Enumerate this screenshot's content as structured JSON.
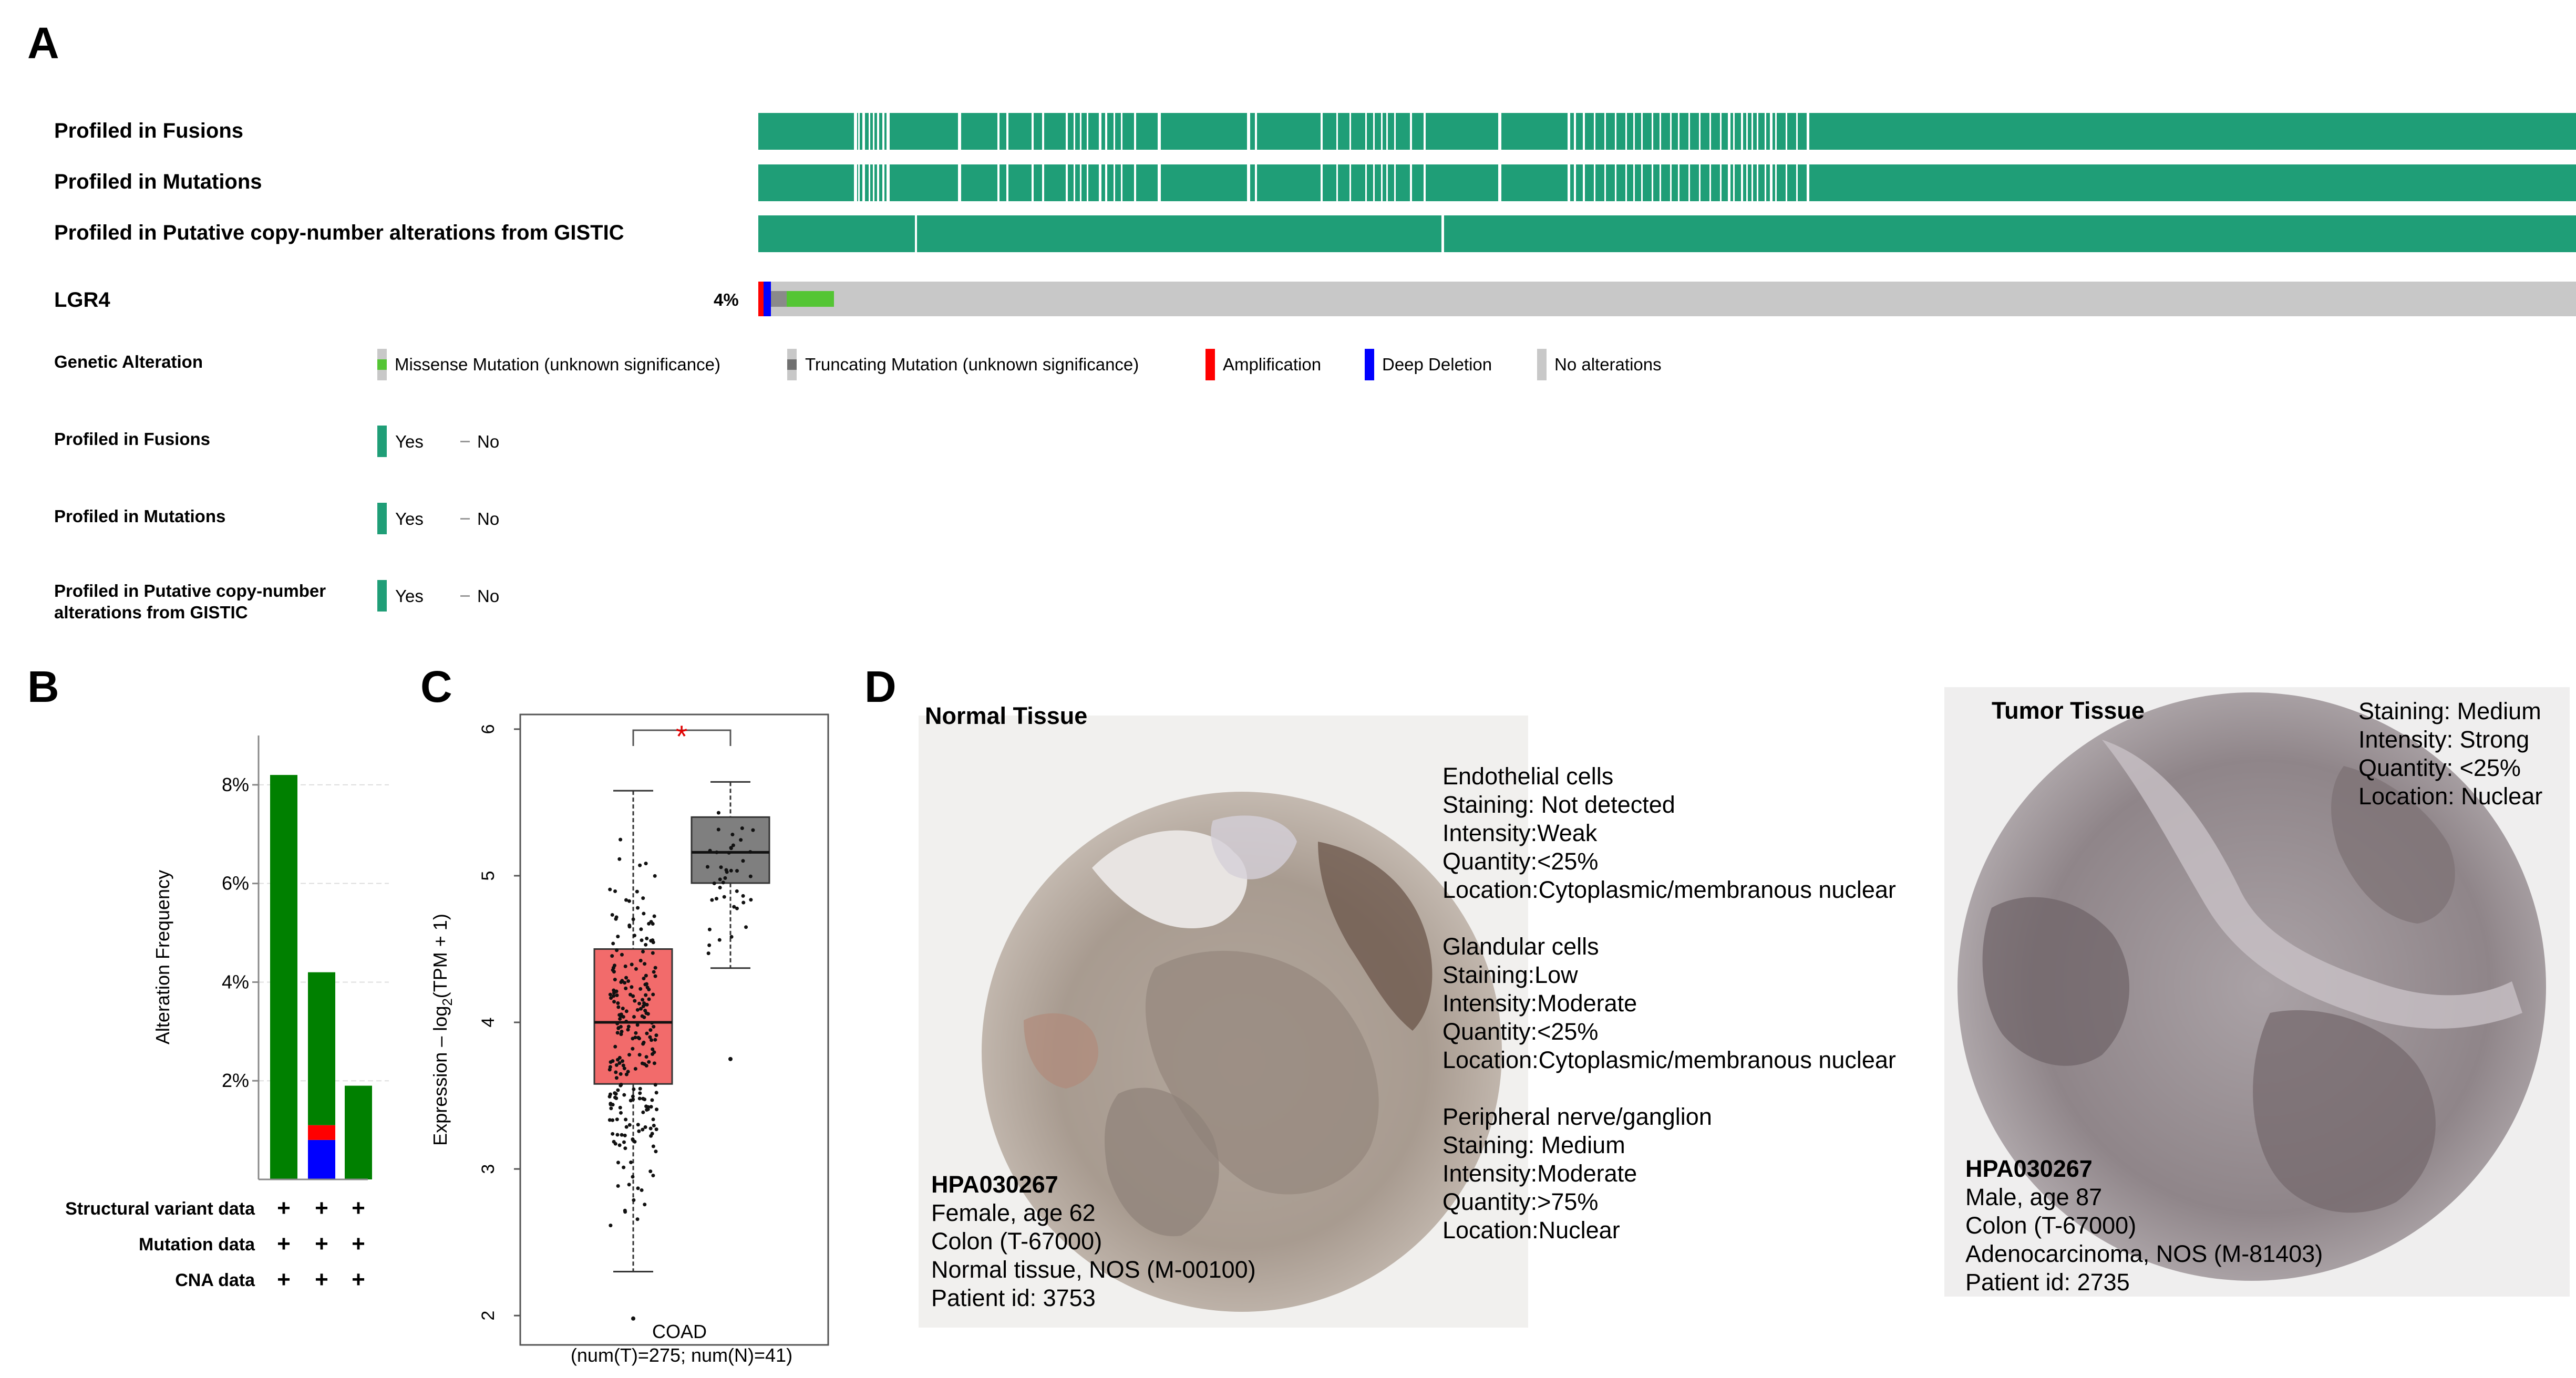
{
  "panels": {
    "a": "A",
    "b": "B",
    "c": "C",
    "d": "D"
  },
  "oncoprint": {
    "tracks": [
      {
        "label": "Profiled in Fusions"
      },
      {
        "label": "Profiled in Mutations"
      },
      {
        "label": "Profiled in Putative copy-number alterations from GISTIC"
      }
    ],
    "gene": {
      "name": "LGR4",
      "percent": "4%"
    },
    "colors": {
      "profiled": "#1f9e77",
      "no_alteration": "#c8c8c8",
      "missense": "#54c534",
      "truncating": "#8a8a8a",
      "amplification": "#ff0000",
      "deep_deletion": "#0000ff"
    },
    "legend": {
      "genetic_alteration": {
        "label": "Genetic Alteration",
        "items": [
          "Missense Mutation (unknown significance)",
          "Truncating Mutation (unknown significance)",
          "Amplification",
          "Deep Deletion",
          "No alterations"
        ]
      },
      "fusions": {
        "label": "Profiled in Fusions",
        "yes": "Yes",
        "no": "No"
      },
      "mutations": {
        "label": "Profiled in Mutations",
        "yes": "Yes",
        "no": "No"
      },
      "cna": {
        "label_line1": "Profiled in Putative copy-number",
        "label_line2": "alterations from GISTIC",
        "yes": "Yes",
        "no": "No"
      }
    }
  },
  "chart_data": [
    {
      "type": "bar",
      "ylabel": "Alteration Frequency",
      "yticks": [
        "2%",
        "4%",
        "6%",
        "8%"
      ],
      "ylim": [
        0,
        9
      ],
      "bars": [
        {
          "total": 8.2,
          "segments": [
            {
              "type": "mutation",
              "value": 8.2
            }
          ]
        },
        {
          "total": 4.2,
          "segments": [
            {
              "type": "deep_deletion",
              "value": 0.8
            },
            {
              "type": "amplification",
              "value": 0.3
            },
            {
              "type": "mutation",
              "value": 3.1
            }
          ]
        },
        {
          "total": 1.9,
          "segments": [
            {
              "type": "mutation",
              "value": 1.9
            }
          ]
        }
      ],
      "rows": [
        {
          "label": "Structural variant data",
          "marks": [
            "+",
            "+",
            "+"
          ]
        },
        {
          "label": "Mutation data",
          "marks": [
            "+",
            "+",
            "+"
          ]
        },
        {
          "label": "CNA data",
          "marks": [
            "+",
            "+",
            "+"
          ]
        }
      ],
      "colors": {
        "mutation": "#008000",
        "amplification": "#ff0000",
        "deep_deletion": "#0000ff"
      }
    },
    {
      "type": "box",
      "ylabel_main": "Expression – log",
      "ylabel_sub": "2",
      "ylabel_tail": "(TPM + 1)",
      "yticks": [
        "2",
        "3",
        "4",
        "5",
        "6"
      ],
      "ylim": [
        1.8,
        6.1
      ],
      "xlabel_line1": "COAD",
      "xlabel_line2": "(num(T)=275; num(N)=41)",
      "significance": "*",
      "boxes": [
        {
          "group": "Tumor",
          "n": 275,
          "min": 2.3,
          "q1": 3.58,
          "median": 4.0,
          "q3": 4.5,
          "max": 5.58,
          "outliers": [
            1.98
          ],
          "color": "#f26b6b"
        },
        {
          "group": "Normal",
          "n": 41,
          "min": 4.37,
          "q1": 4.95,
          "median": 5.16,
          "q3": 5.4,
          "max": 5.64,
          "outliers": [
            3.75
          ],
          "color": "#7f7f7f"
        }
      ]
    }
  ],
  "ihc": {
    "normal": {
      "title": "Normal Tissue",
      "antibody": "HPA030267",
      "patient": [
        "Female, age 62",
        "Colon (T-67000)",
        "Normal tissue, NOS (M-00100)",
        "Patient id: 3753"
      ],
      "cells": [
        {
          "name": "Endothelial cells",
          "lines": [
            "Staining: Not detected",
            "Intensity:Weak",
            "Quantity:<25%",
            "Location:Cytoplasmic/membranous nuclear"
          ]
        },
        {
          "name": "Glandular cells",
          "lines": [
            "Staining:Low",
            "Intensity:Moderate",
            "Quantity:<25%",
            "Location:Cytoplasmic/membranous nuclear"
          ]
        },
        {
          "name": "Peripheral nerve/ganglion",
          "lines": [
            "Staining: Medium",
            "Intensity:Moderate",
            "Quantity:>75%",
            "Location:Nuclear"
          ]
        }
      ]
    },
    "tumor": {
      "title": "Tumor Tissue",
      "antibody": "HPA030267",
      "patient": [
        "Male, age 87",
        "Colon (T-67000)",
        "Adenocarcinoma, NOS (M-81403)",
        "Patient id: 2735"
      ],
      "staining": [
        "Staining: Medium",
        "Intensity: Strong",
        "Quantity: <25%",
        "Location: Nuclear"
      ]
    }
  }
}
